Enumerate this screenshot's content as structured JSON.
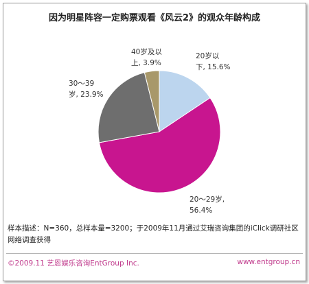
{
  "chart_data": {
    "type": "pie",
    "title": "因为明星阵容一定购票观看《风云2》的观众年龄构成",
    "slices": [
      {
        "label_lines": [
          "20岁以",
          "下, 15.6%"
        ],
        "category": "20岁以下",
        "value": 15.6,
        "color": "#bcd5ee"
      },
      {
        "label_lines": [
          "20～29岁,",
          "56.4%"
        ],
        "category": "20～29岁",
        "value": 56.4,
        "color": "#c8158f"
      },
      {
        "label_lines": [
          "30～39",
          "岁, 23.9%"
        ],
        "category": "30～39岁",
        "value": 23.9,
        "color": "#6e6e6e"
      },
      {
        "label_lines": [
          "40岁及以",
          "上, 3.9%"
        ],
        "category": "40岁及以上",
        "value": 3.9,
        "color": "#a8986a"
      }
    ]
  },
  "note": "样本描述：N=360，总样本量=3200；于2009年11月通过艾瑞咨询集团的iClick调研社区网络调查获得",
  "footer": {
    "copyright": "©2009.11  艺恩娱乐咨询EntGroup Inc.",
    "website": "www.entgroup.cn"
  },
  "colors": {
    "brand": "#c03a8c"
  }
}
